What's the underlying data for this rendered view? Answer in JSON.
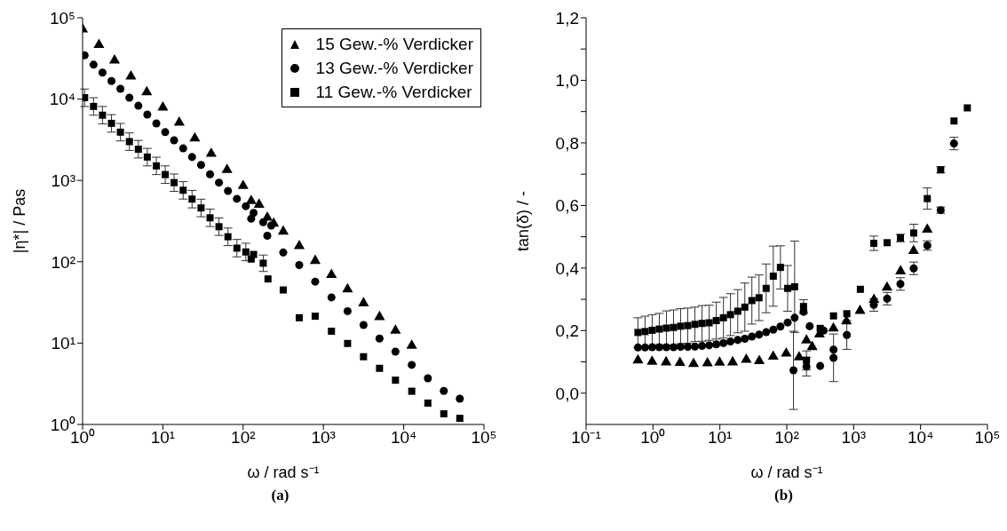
{
  "chart_data": [
    {
      "type": "scatter",
      "title": "(a)",
      "xlabel": "ω / rad s⁻¹",
      "ylabel": "|η*| / Pas",
      "log": "xy",
      "legend": "top right",
      "xlim": [
        1,
        100000
      ],
      "ylim": [
        1,
        100000
      ],
      "xticks": [
        {
          "value": 1,
          "label": "10⁰"
        },
        {
          "value": 10,
          "label": "10¹"
        },
        {
          "value": 100,
          "label": "10²"
        },
        {
          "value": 1000,
          "label": "10³"
        },
        {
          "value": 10000,
          "label": "10⁴"
        },
        {
          "value": 100000,
          "label": "10⁵"
        }
      ],
      "yticks": [
        {
          "value": 1,
          "label": "10⁰"
        },
        {
          "value": 10,
          "label": "10¹"
        },
        {
          "value": 100,
          "label": "10²"
        },
        {
          "value": 1000,
          "label": "10³"
        },
        {
          "value": 10000,
          "label": "10⁴"
        },
        {
          "value": 100000,
          "label": "10⁵"
        }
      ],
      "series": [
        {
          "name": "15 Gew.-% Verdicker",
          "color": "#000000",
          "marker": "triangle",
          "x": [
            1,
            1.6,
            2.5,
            4,
            6.3,
            10,
            16,
            25,
            40,
            63,
            100,
            126,
            158,
            200,
            240,
            316,
            500,
            790,
            1260,
            2000,
            3160,
            5000,
            7900,
            12600
          ],
          "values": [
            72000,
            46500,
            30000,
            19000,
            12200,
            7900,
            5150,
            3300,
            2140,
            1350,
            860,
            560,
            505,
            350,
            295,
            236,
            156,
            103,
            69,
            46,
            31,
            21,
            14.3,
            9.3
          ]
        },
        {
          "name": "13 Gew.-% Verdicker",
          "color": "#000000",
          "marker": "circle",
          "x": [
            1.06,
            1.37,
            1.77,
            2.29,
            2.96,
            3.83,
            4.95,
            6.4,
            8.3,
            10.7,
            13.8,
            17.9,
            23.1,
            29.9,
            38.7,
            50,
            64.7,
            83.6,
            108,
            126,
            135,
            178,
            224,
            200,
            316,
            500,
            790,
            1260,
            2000,
            3160,
            5000,
            7900,
            12600,
            20000,
            31600,
            50000
          ],
          "values": [
            34500,
            26500,
            21200,
            16700,
            13400,
            10400,
            8280,
            6450,
            5030,
            3920,
            3110,
            2480,
            1940,
            1550,
            1190,
            940,
            743,
            594,
            483,
            338,
            399,
            306,
            279,
            209,
            130,
            91,
            57,
            36.5,
            24.7,
            16.7,
            11.4,
            7.85,
            5.4,
            3.7,
            2.58,
            2.07
          ]
        },
        {
          "name": "11 Gew.-% Verdicker",
          "color": "#000000",
          "marker": "square",
          "x": [
            1.06,
            1.37,
            1.77,
            2.29,
            2.96,
            3.83,
            4.95,
            6.4,
            8.3,
            10.7,
            13.8,
            17.9,
            23.1,
            29.9,
            38.7,
            50,
            64.7,
            83.6,
            108,
            126,
            135,
            178,
            204,
            316,
            500,
            790,
            1260,
            2000,
            3160,
            5000,
            7900,
            12600,
            20000,
            31600,
            50000
          ],
          "values": [
            10400,
            8130,
            6340,
            5030,
            3920,
            3000,
            2420,
            1940,
            1510,
            1180,
            940,
            757,
            590,
            459,
            347,
            270,
            203,
            147,
            132,
            108,
            123,
            96,
            61.5,
            45,
            20.5,
            21.4,
            14,
            9.9,
            6.8,
            4.9,
            3.5,
            2.56,
            1.83,
            1.35,
            1.19
          ],
          "errors": [
            [
              8100,
              13300
            ],
            [
              6340,
              10400
            ],
            [
              4950,
              8120
            ],
            [
              3920,
              6440
            ],
            [
              3060,
              5020
            ],
            [
              2340,
              3840
            ],
            [
              1890,
              3100
            ],
            [
              1510,
              2480
            ],
            [
              1180,
              1930
            ],
            [
              920,
              1510
            ],
            [
              733,
              1200
            ],
            [
              590,
              969
            ],
            [
              460,
              755
            ],
            [
              358,
              588
            ],
            [
              271,
              444
            ],
            [
              211,
              346
            ],
            [
              158,
              260
            ],
            [
              115,
              188
            ],
            [
              103,
              169
            ],
            null,
            null,
            [
              76,
              121
            ],
            null,
            null,
            null,
            null,
            null,
            null,
            null,
            null,
            null,
            null,
            null,
            null,
            null
          ]
        }
      ]
    },
    {
      "type": "scatter",
      "title": "(b)",
      "xlabel": "ω / rad s⁻¹",
      "ylabel": "tan(δ) / -",
      "log": "x",
      "xlim": [
        0.1,
        100000
      ],
      "ylim": [
        -0.1,
        1.2
      ],
      "xticks": [
        {
          "value": 0.1,
          "label": "10⁻¹"
        },
        {
          "value": 1,
          "label": "10⁰"
        },
        {
          "value": 10,
          "label": "10¹"
        },
        {
          "value": 100,
          "label": "10²"
        },
        {
          "value": 1000,
          "label": "10³"
        },
        {
          "value": 10000,
          "label": "10⁴"
        },
        {
          "value": 100000,
          "label": "10⁵"
        }
      ],
      "yticks": [
        {
          "value": 0,
          "label": "0,0"
        },
        {
          "value": 0.1,
          "label": null
        },
        {
          "value": 0.2,
          "label": "0,2"
        },
        {
          "value": 0.3,
          "label": null
        },
        {
          "value": 0.4,
          "label": "0,4"
        },
        {
          "value": 0.5,
          "label": null
        },
        {
          "value": 0.6,
          "label": "0,6"
        },
        {
          "value": 0.7,
          "label": null
        },
        {
          "value": 0.8,
          "label": "0,8"
        },
        {
          "value": 0.9,
          "label": null
        },
        {
          "value": 1,
          "label": "1,0"
        },
        {
          "value": 1.1,
          "label": null
        },
        {
          "value": 1.2,
          "label": "1,2"
        }
      ],
      "series": [
        {
          "color": "#000000",
          "marker": "triangle",
          "x": [
            0.596,
            0.97,
            1.57,
            2.53,
            4.04,
            6.52,
            9.9,
            15.5,
            24.8,
            38.8,
            62.7,
            98,
            153,
            197,
            240,
            308,
            498,
            780,
            1245,
            2010,
            3150,
            5020,
            7870,
            12600
          ],
          "values": [
            0.105,
            0.101,
            0.099,
            0.097,
            0.094,
            0.096,
            0.098,
            0.099,
            0.107,
            0.103,
            0.117,
            0.127,
            0.115,
            0.169,
            0.148,
            0.188,
            0.207,
            0.23,
            0.263,
            0.299,
            0.338,
            0.39,
            0.455,
            0.523
          ]
        },
        {
          "color": "#000000",
          "marker": "circle",
          "x": [
            0.596,
            0.761,
            0.973,
            1.243,
            1.589,
            2.03,
            2.59,
            3.31,
            4.24,
            5.41,
            6.92,
            8.84,
            11.3,
            14.4,
            18.5,
            23.6,
            30.1,
            38.5,
            49.2,
            62.9,
            80.4,
            103,
            131,
            126,
            178,
            197,
            220,
            316,
            355,
            500,
            500,
            790,
            2000,
            3160,
            5000,
            7900,
            12600,
            20000,
            31600
          ],
          "values": [
            0.146,
            0.146,
            0.147,
            0.147,
            0.147,
            0.147,
            0.148,
            0.148,
            0.149,
            0.151,
            0.153,
            0.156,
            0.16,
            0.165,
            0.17,
            0.174,
            0.181,
            0.187,
            0.195,
            0.203,
            0.213,
            0.226,
            0.241,
            0.073,
            0.26,
            0.085,
            0.214,
            0.087,
            0.2,
            0.139,
            0.113,
            0.186,
            0.282,
            0.302,
            0.349,
            0.399,
            0.472,
            0.585,
            0.798
          ],
          "errors": [
            null,
            null,
            null,
            null,
            null,
            null,
            null,
            null,
            null,
            null,
            null,
            null,
            null,
            null,
            null,
            null,
            null,
            null,
            null,
            null,
            null,
            null,
            null,
            0.125,
            null,
            0.03,
            null,
            null,
            null,
            null,
            0.076,
            0.046,
            0.02,
            0.02,
            0.02,
            0.02,
            0.015,
            0.01,
            0.02
          ]
        },
        {
          "color": "#000000",
          "marker": "square",
          "x": [
            0.596,
            0.761,
            0.973,
            1.243,
            1.589,
            2.03,
            2.59,
            3.31,
            4.24,
            5.41,
            6.92,
            8.84,
            11.3,
            14.4,
            18.5,
            23.6,
            30.1,
            38.5,
            49.2,
            62.9,
            80.4,
            103,
            131,
            178,
            197,
            316,
            500,
            790,
            1260,
            2000,
            3160,
            5000,
            7900,
            12600,
            20000,
            31600,
            50000
          ],
          "values": [
            0.194,
            0.197,
            0.201,
            0.205,
            0.208,
            0.21,
            0.214,
            0.216,
            0.22,
            0.223,
            0.225,
            0.232,
            0.241,
            0.251,
            0.262,
            0.275,
            0.296,
            0.305,
            0.335,
            0.374,
            0.402,
            0.335,
            0.34,
            0.277,
            0.105,
            0.207,
            0.247,
            0.254,
            0.332,
            0.479,
            0.481,
            0.496,
            0.512,
            0.622,
            0.714,
            0.87,
            0.912
          ],
          "errors": [
            0.047,
            0.049,
            0.05,
            0.05,
            0.055,
            0.056,
            0.056,
            0.056,
            0.055,
            0.057,
            0.056,
            0.059,
            0.065,
            0.067,
            0.069,
            0.077,
            0.075,
            0.073,
            0.078,
            0.096,
            0.069,
            0.073,
            0.146,
            0.022,
            0.03,
            null,
            null,
            null,
            null,
            0.023,
            null,
            0.012,
            0.028,
            0.034,
            0.01,
            null,
            null
          ]
        }
      ]
    }
  ]
}
